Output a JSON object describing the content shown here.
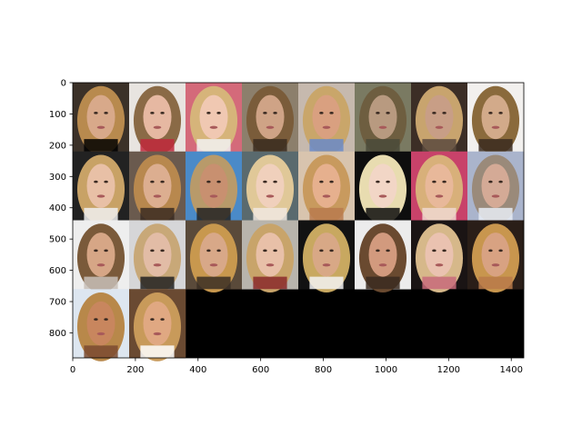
{
  "figure": {
    "image_grid": {
      "rows": 4,
      "cols": 8,
      "filled_tiles": 26,
      "empty_fill": "#000000",
      "tiles": [
        {
          "row": 0,
          "col": 0,
          "bg": "#3b3128",
          "hair": "#b88a4e",
          "skin": "#d8a98a",
          "accent": "#000000"
        },
        {
          "row": 0,
          "col": 1,
          "bg": "#e8e4e0",
          "hair": "#8a6a46",
          "skin": "#e6b8a2",
          "accent": "#c0283c"
        },
        {
          "row": 0,
          "col": 2,
          "bg": "#d46a7a",
          "hair": "#d6b47a",
          "skin": "#f0c8b2",
          "accent": "#f2f2f2"
        },
        {
          "row": 0,
          "col": 3,
          "bg": "#8c7f6c",
          "hair": "#7a5c3a",
          "skin": "#cfa386",
          "accent": "#3a2c20"
        },
        {
          "row": 0,
          "col": 4,
          "bg": "#c6b9ae",
          "hair": "#c9a66a",
          "skin": "#d9a080",
          "accent": "#6a8ac8"
        },
        {
          "row": 0,
          "col": 5,
          "bg": "#7a7a62",
          "hair": "#6e5e40",
          "skin": "#b89a80",
          "accent": "#4a4a3a"
        },
        {
          "row": 0,
          "col": 6,
          "bg": "#3c2e26",
          "hair": "#c8a46e",
          "skin": "#c89e86",
          "accent": "#5a4a3e"
        },
        {
          "row": 0,
          "col": 7,
          "bg": "#f2f0ee",
          "hair": "#8a6a3c",
          "skin": "#d2aa8a",
          "accent": "#3a2a1e"
        },
        {
          "row": 1,
          "col": 0,
          "bg": "#222222",
          "hair": "#c8a266",
          "skin": "#e8c0a6",
          "accent": "#f0f0f0"
        },
        {
          "row": 1,
          "col": 1,
          "bg": "#6a5a4e",
          "hair": "#b8884e",
          "skin": "#dcae90",
          "accent": "#3a2c22"
        },
        {
          "row": 1,
          "col": 2,
          "bg": "#4a8ac8",
          "hair": "#b89a6a",
          "skin": "#c89070",
          "accent": "#222222"
        },
        {
          "row": 1,
          "col": 3,
          "bg": "#5a6a6e",
          "hair": "#e0c898",
          "skin": "#f0d0bc",
          "accent": "#f0e8e0"
        },
        {
          "row": 1,
          "col": 4,
          "bg": "#d8c4ae",
          "hair": "#c89a5e",
          "skin": "#e6b08e",
          "accent": "#b87a4e"
        },
        {
          "row": 1,
          "col": 5,
          "bg": "#0e0e0e",
          "hair": "#e8dcb0",
          "skin": "#f2d6c6",
          "accent": "#0e0e0e"
        },
        {
          "row": 1,
          "col": 6,
          "bg": "#c8426a",
          "hair": "#d8b07a",
          "skin": "#e8b89a",
          "accent": "#f0d8d0"
        },
        {
          "row": 1,
          "col": 7,
          "bg": "#aab4cc",
          "hair": "#9a8a7a",
          "skin": "#d4aa96",
          "accent": "#e8ecf4"
        },
        {
          "row": 2,
          "col": 0,
          "bg": "#eeeeee",
          "hair": "#7a5a3a",
          "skin": "#d6a686",
          "accent": "#c8c0b8"
        },
        {
          "row": 2,
          "col": 1,
          "bg": "#d6d6d8",
          "hair": "#c8a878",
          "skin": "#e2bca6",
          "accent": "#222222"
        },
        {
          "row": 2,
          "col": 2,
          "bg": "#5a4a3a",
          "hair": "#c8984e",
          "skin": "#d8a888",
          "accent": "#3a2e24"
        },
        {
          "row": 2,
          "col": 3,
          "bg": "#b8b4ac",
          "hair": "#c8a46a",
          "skin": "#e8c0a8",
          "accent": "#8a2a2a"
        },
        {
          "row": 2,
          "col": 4,
          "bg": "#121212",
          "hair": "#c8a860",
          "skin": "#d8a886",
          "accent": "#f2f2f2"
        },
        {
          "row": 2,
          "col": 5,
          "bg": "#ececec",
          "hair": "#6a4a30",
          "skin": "#d29a7e",
          "accent": "#3a2a20"
        },
        {
          "row": 2,
          "col": 6,
          "bg": "#1a1414",
          "hair": "#d6b88a",
          "skin": "#eac2b0",
          "accent": "#c86a7a"
        },
        {
          "row": 2,
          "col": 7,
          "bg": "#2a1e18",
          "hair": "#c8964e",
          "skin": "#d8a282",
          "accent": "#b87a4a"
        },
        {
          "row": 3,
          "col": 0,
          "bg": "#dde6f0",
          "hair": "#b8884a",
          "skin": "#c8865e",
          "accent": "#7a4a30"
        },
        {
          "row": 3,
          "col": 1,
          "bg": "#6a4a32",
          "hair": "#c89a5a",
          "skin": "#e0a882",
          "accent": "#ffffff"
        }
      ]
    },
    "x_axis": {
      "ticks": [
        0,
        200,
        400,
        600,
        800,
        1000,
        1200,
        1400
      ],
      "range": [
        0,
        1440
      ],
      "color": "#000000"
    },
    "y_axis": {
      "ticks": [
        0,
        100,
        200,
        300,
        400,
        500,
        600,
        700,
        800
      ],
      "range": [
        0,
        880
      ],
      "inverted": true,
      "color": "#000000"
    }
  }
}
